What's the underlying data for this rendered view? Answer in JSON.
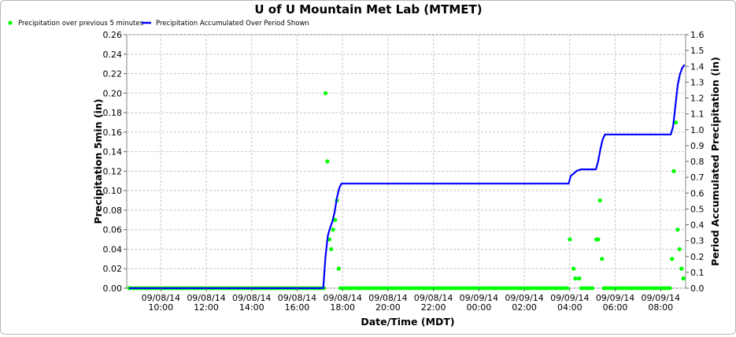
{
  "chart_data": {
    "type": "line",
    "title": "U of U Mountain Met Lab (MTMET)",
    "xlabel": "Date/Time (MDT)",
    "ylabel": "Precipitation 5min (in)",
    "y2label": "Period Accumulated Precipitation (in)",
    "x_start_hours": 8.5,
    "x_end_hours": 33.1,
    "ylim": [
      0,
      0.26
    ],
    "y2lim": [
      0,
      1.6
    ],
    "yticks": [
      0,
      0.02,
      0.04,
      0.06,
      0.08,
      0.1,
      0.12,
      0.14,
      0.16,
      0.18,
      0.2,
      0.22,
      0.24,
      0.26
    ],
    "y2ticks": [
      0,
      0.1,
      0.2,
      0.3,
      0.4,
      0.5,
      0.6,
      0.7,
      0.8,
      0.9,
      1.0,
      1.1,
      1.2,
      1.3,
      1.4,
      1.5,
      1.6
    ],
    "xticks": [
      {
        "hours": 10,
        "date": "09/08/14",
        "time": "10:00"
      },
      {
        "hours": 12,
        "date": "09/08/14",
        "time": "12:00"
      },
      {
        "hours": 14,
        "date": "09/08/14",
        "time": "14:00"
      },
      {
        "hours": 16,
        "date": "09/08/14",
        "time": "16:00"
      },
      {
        "hours": 18,
        "date": "09/08/14",
        "time": "18:00"
      },
      {
        "hours": 20,
        "date": "09/08/14",
        "time": "20:00"
      },
      {
        "hours": 22,
        "date": "09/08/14",
        "time": "22:00"
      },
      {
        "hours": 24,
        "date": "09/09/14",
        "time": "00:00"
      },
      {
        "hours": 26,
        "date": "09/09/14",
        "time": "02:00"
      },
      {
        "hours": 28,
        "date": "09/09/14",
        "time": "04:00"
      },
      {
        "hours": 30,
        "date": "09/09/14",
        "time": "06:00"
      },
      {
        "hours": 32,
        "date": "09/09/14",
        "time": "08:00"
      }
    ],
    "legend_position": "top-left",
    "grid": true,
    "series": [
      {
        "name": "Precipitation over previous 5 minutes",
        "type": "scatter",
        "axis": "left",
        "color": "#00ff00",
        "points": [
          [
            17.25,
            0.2
          ],
          [
            17.33,
            0.13
          ],
          [
            17.42,
            0.05
          ],
          [
            17.5,
            0.04
          ],
          [
            17.58,
            0.06
          ],
          [
            17.67,
            0.07
          ],
          [
            17.75,
            0.09
          ],
          [
            17.83,
            0.02
          ],
          [
            28.0,
            0.05
          ],
          [
            28.17,
            0.02
          ],
          [
            28.25,
            0.01
          ],
          [
            28.42,
            0.01
          ],
          [
            29.17,
            0.05
          ],
          [
            29.25,
            0.05
          ],
          [
            29.33,
            0.09
          ],
          [
            29.42,
            0.03
          ],
          [
            32.5,
            0.03
          ],
          [
            32.58,
            0.12
          ],
          [
            32.67,
            0.17
          ],
          [
            32.75,
            0.06
          ],
          [
            32.83,
            0.04
          ],
          [
            32.92,
            0.02
          ],
          [
            33.0,
            0.01
          ]
        ],
        "zero_ranges": [
          [
            8.6,
            17.2
          ],
          [
            17.9,
            27.95
          ],
          [
            28.5,
            29.05
          ],
          [
            29.5,
            32.45
          ]
        ]
      },
      {
        "name": "Precipitation Accumulated Over Period Shown",
        "type": "line",
        "axis": "right",
        "color": "#0000ff",
        "points": [
          [
            8.6,
            0
          ],
          [
            17.15,
            0
          ],
          [
            17.25,
            0.2
          ],
          [
            17.35,
            0.33
          ],
          [
            17.45,
            0.38
          ],
          [
            17.55,
            0.42
          ],
          [
            17.65,
            0.48
          ],
          [
            17.75,
            0.57
          ],
          [
            17.85,
            0.63
          ],
          [
            17.95,
            0.66
          ],
          [
            18.05,
            0.66
          ],
          [
            27.95,
            0.66
          ],
          [
            28.05,
            0.71
          ],
          [
            28.15,
            0.72
          ],
          [
            28.3,
            0.74
          ],
          [
            28.5,
            0.75
          ],
          [
            29.0,
            0.75
          ],
          [
            29.15,
            0.75
          ],
          [
            29.25,
            0.8
          ],
          [
            29.35,
            0.88
          ],
          [
            29.45,
            0.94
          ],
          [
            29.55,
            0.97
          ],
          [
            31.9,
            0.97
          ],
          [
            32.45,
            0.97
          ],
          [
            32.55,
            1.02
          ],
          [
            32.65,
            1.15
          ],
          [
            32.75,
            1.28
          ],
          [
            32.85,
            1.35
          ],
          [
            32.95,
            1.39
          ],
          [
            33.05,
            1.41
          ]
        ]
      }
    ]
  }
}
